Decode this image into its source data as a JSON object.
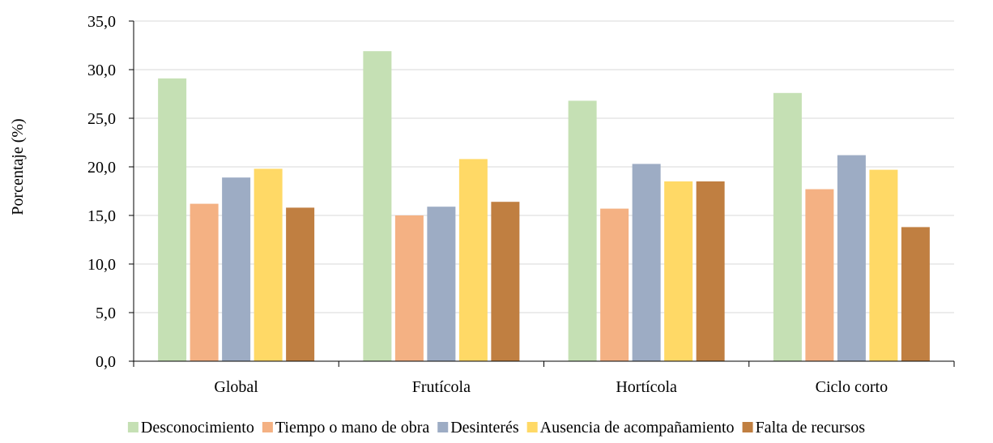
{
  "chart_data": {
    "type": "bar",
    "title": "",
    "xlabel": "",
    "ylabel": "Porcentaje (%)",
    "ylim": [
      0,
      35
    ],
    "y_ticks": [
      "0,0",
      "5,0",
      "10,0",
      "15,0",
      "20,0",
      "25,0",
      "30,0",
      "35,0"
    ],
    "grid": "horizontal",
    "legend_position": "bottom",
    "categories": [
      "Global",
      "Frutícola",
      "Hortícola",
      "Ciclo corto"
    ],
    "series": [
      {
        "name": "Desconocimiento",
        "color": "#c5e0b4",
        "values": [
          29.1,
          31.9,
          26.8,
          27.6
        ]
      },
      {
        "name": "Tiempo o mano de obra",
        "color": "#f4b183",
        "values": [
          16.2,
          15.0,
          15.7,
          17.7
        ]
      },
      {
        "name": "Desinterés",
        "color": "#9dacc4",
        "values": [
          18.9,
          15.9,
          20.3,
          21.2
        ]
      },
      {
        "name": "Ausencia de acompañamiento",
        "color": "#ffd966",
        "values": [
          19.8,
          20.8,
          18.5,
          19.7
        ]
      },
      {
        "name": "Falta de recursos",
        "color": "#c07f41",
        "values": [
          15.8,
          16.4,
          18.5,
          13.8
        ]
      }
    ]
  }
}
